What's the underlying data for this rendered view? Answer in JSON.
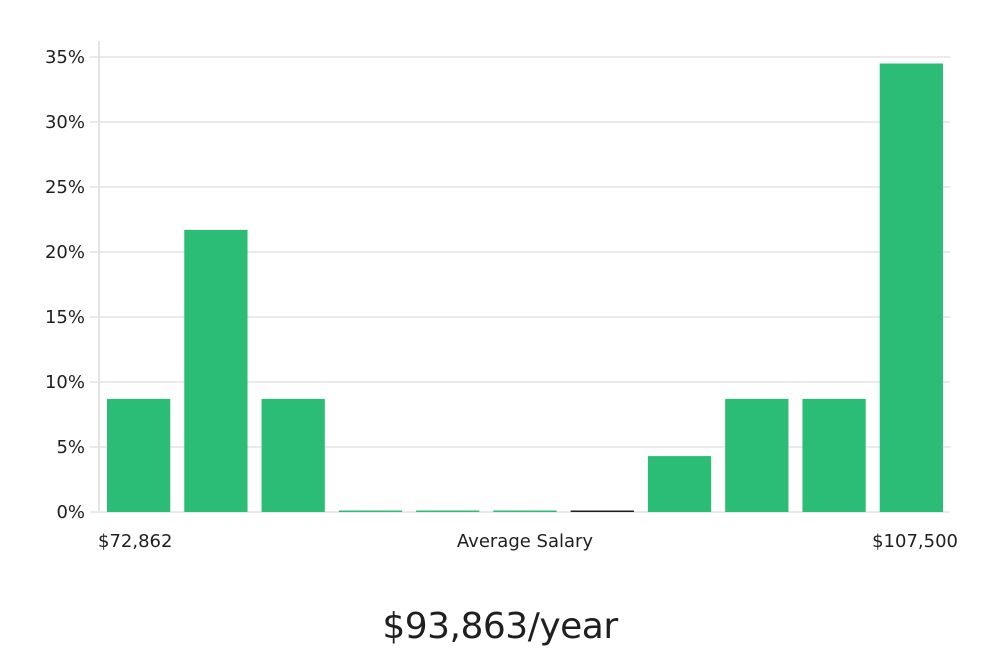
{
  "chart_data": {
    "type": "bar",
    "colors": {
      "bar": "#2bbd76",
      "grid": "#e3e3e6",
      "axis": "#dcdcdc",
      "zero_bar": "#1f1f1f"
    },
    "y_ticks": [
      "0%",
      "5%",
      "10%",
      "15%",
      "20%",
      "25%",
      "30%",
      "35%"
    ],
    "ylim": [
      0,
      35
    ],
    "values": [
      8.7,
      21.7,
      8.7,
      0,
      0,
      0,
      0,
      4.3,
      8.7,
      8.7,
      34.5
    ],
    "x_min_label": "$72,862",
    "xlabel": "Average Salary",
    "x_max_label": "$107,500",
    "grid": true
  },
  "summary": {
    "salary": "$93,863/year"
  }
}
